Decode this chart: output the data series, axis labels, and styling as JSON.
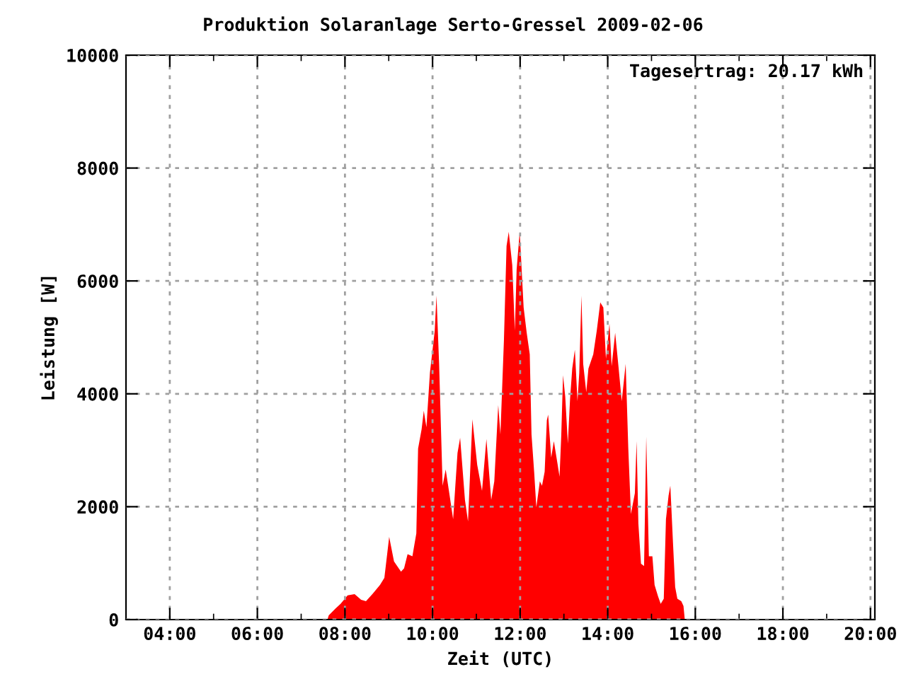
{
  "chart_data": {
    "type": "area",
    "title": "Produktion Solaranlage Serto-Gressel 2009-02-06",
    "xlabel": "Zeit (UTC)",
    "ylabel": "Leistung [W]",
    "annotations": [
      "Tagesertrag: 20.17 kWh"
    ],
    "x": [
      7.6,
      7.63,
      7.79,
      7.9,
      8.06,
      8.22,
      8.37,
      8.48,
      8.64,
      8.8,
      8.9,
      9.01,
      9.12,
      9.28,
      9.35,
      9.43,
      9.54,
      9.63,
      9.67,
      9.75,
      9.8,
      9.86,
      9.94,
      10.05,
      10.09,
      10.15,
      10.23,
      10.3,
      10.39,
      10.47,
      10.57,
      10.63,
      10.74,
      10.81,
      10.91,
      11.02,
      11.13,
      11.23,
      11.34,
      11.41,
      11.5,
      11.55,
      11.63,
      11.69,
      11.74,
      11.82,
      11.88,
      11.92,
      11.99,
      12.08,
      12.15,
      12.22,
      12.26,
      12.32,
      12.37,
      12.45,
      12.5,
      12.56,
      12.61,
      12.64,
      12.71,
      12.77,
      12.85,
      12.9,
      12.94,
      12.98,
      13.03,
      13.09,
      13.14,
      13.19,
      13.25,
      13.31,
      13.35,
      13.4,
      13.44,
      13.51,
      13.56,
      13.67,
      13.75,
      13.83,
      13.9,
      13.96,
      14.04,
      14.09,
      14.17,
      14.25,
      14.32,
      14.41,
      14.47,
      14.53,
      14.62,
      14.66,
      14.7,
      14.76,
      14.83,
      14.88,
      14.94,
      15.02,
      15.07,
      15.15,
      15.21,
      15.28,
      15.33,
      15.39,
      15.43,
      15.49,
      15.54,
      15.59,
      15.68,
      15.73,
      15.76
    ],
    "series": [
      {
        "color": "#ff0000",
        "values": [
          0,
          75,
          200,
          280,
          430,
          450,
          350,
          325,
          465,
          615,
          740,
          1465,
          1030,
          850,
          910,
          1160,
          1120,
          1530,
          3030,
          3370,
          3700,
          3410,
          4370,
          5120,
          5740,
          4530,
          2370,
          2660,
          2200,
          1780,
          2950,
          3220,
          2120,
          1740,
          3550,
          2740,
          2280,
          3200,
          2120,
          2450,
          3800,
          3280,
          4950,
          6620,
          6870,
          6280,
          5120,
          6200,
          6870,
          5530,
          5080,
          4700,
          3280,
          2620,
          1990,
          2450,
          2370,
          2620,
          3530,
          3630,
          2870,
          3160,
          2780,
          2530,
          3280,
          4330,
          3950,
          3120,
          3910,
          4450,
          4780,
          3870,
          4370,
          5740,
          4530,
          4030,
          4450,
          4700,
          5120,
          5620,
          5530,
          4620,
          5240,
          4490,
          5080,
          4450,
          3870,
          4530,
          3030,
          1870,
          2240,
          3160,
          1700,
          990,
          950,
          3240,
          1120,
          1120,
          615,
          410,
          280,
          370,
          1780,
          2200,
          2370,
          1370,
          575,
          370,
          325,
          240,
          0
        ]
      }
    ],
    "xlim": [
      3,
      20.1
    ],
    "xticks": [
      {
        "value": 4,
        "label": "04:00"
      },
      {
        "value": 6,
        "label": "06:00"
      },
      {
        "value": 8,
        "label": "08:00"
      },
      {
        "value": 10,
        "label": "10:00"
      },
      {
        "value": 12,
        "label": "12:00"
      },
      {
        "value": 14,
        "label": "14:00"
      },
      {
        "value": 16,
        "label": "16:00"
      },
      {
        "value": 18,
        "label": "18:00"
      },
      {
        "value": 20,
        "label": "20:00"
      }
    ],
    "ylim": [
      0,
      10000
    ],
    "yticks": [
      0,
      2000,
      4000,
      6000,
      8000,
      10000
    ],
    "grid": true,
    "legend": false
  }
}
